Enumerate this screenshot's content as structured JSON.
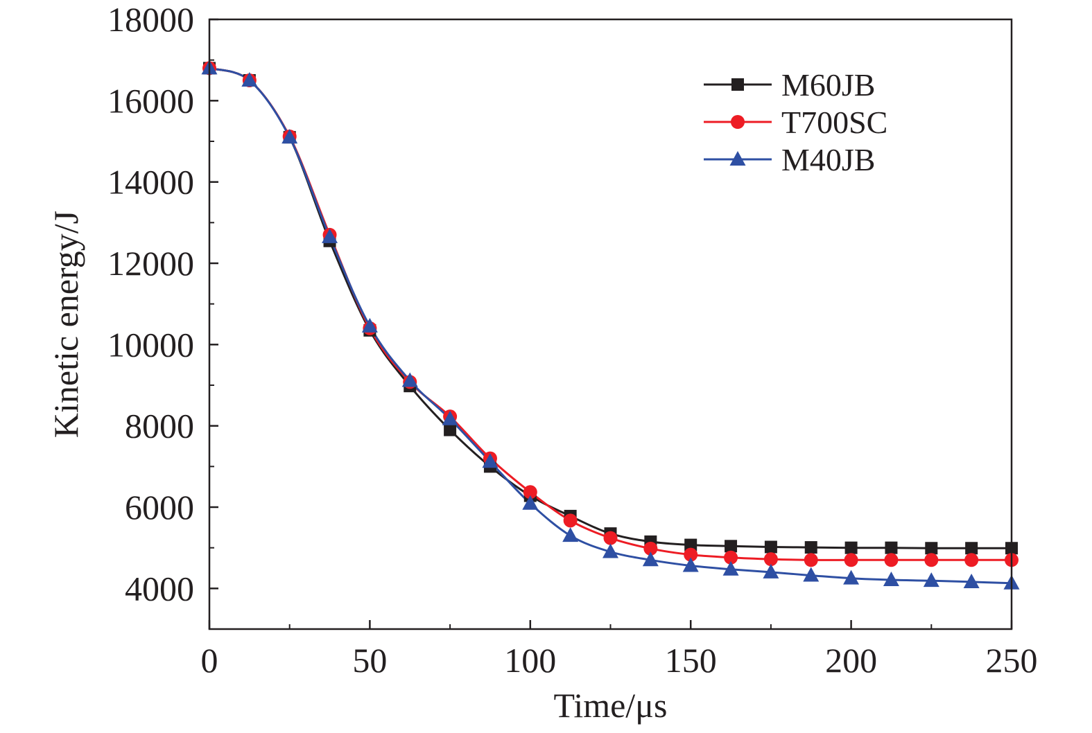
{
  "chart_data": {
    "type": "line",
    "title": "",
    "xlabel": "Time/μs",
    "ylabel": "Kinetic energy/J",
    "xlim": [
      0,
      250
    ],
    "ylim": [
      3000,
      18000
    ],
    "xticks": [
      0,
      50,
      100,
      150,
      200,
      250
    ],
    "yticks": [
      4000,
      6000,
      8000,
      10000,
      12000,
      14000,
      16000,
      18000
    ],
    "xtick_labels": [
      "0",
      "50",
      "100",
      "150",
      "200",
      "250"
    ],
    "ytick_labels": [
      "4000",
      "6000",
      "8000",
      "10000",
      "12000",
      "14000",
      "16000",
      "18000"
    ],
    "grid": false,
    "legend_position": "top-right",
    "x": [
      0,
      12.5,
      25,
      37.5,
      50,
      62.5,
      75,
      87.5,
      100,
      112.5,
      125,
      137.5,
      150,
      162.5,
      175,
      187.5,
      200,
      212.5,
      225,
      237.5,
      250
    ],
    "series": [
      {
        "name": "M60JB",
        "color": "#231f20",
        "marker": "square",
        "values": [
          16800,
          16500,
          15100,
          12550,
          10350,
          8980,
          7900,
          7000,
          6280,
          5780,
          5350,
          5150,
          5070,
          5040,
          5020,
          5010,
          5000,
          5000,
          4990,
          4990,
          4990
        ]
      },
      {
        "name": "T700SC",
        "color": "#ed1c24",
        "marker": "circle",
        "values": [
          16800,
          16500,
          15120,
          12700,
          10400,
          9080,
          8230,
          7200,
          6370,
          5670,
          5240,
          4980,
          4830,
          4760,
          4720,
          4700,
          4700,
          4700,
          4700,
          4700,
          4700
        ]
      },
      {
        "name": "M40JB",
        "color": "#2e4fa3",
        "marker": "triangle",
        "values": [
          16800,
          16500,
          15100,
          12650,
          10450,
          9110,
          8170,
          7120,
          6090,
          5300,
          4900,
          4700,
          4560,
          4470,
          4400,
          4320,
          4250,
          4210,
          4190,
          4160,
          4130
        ]
      }
    ]
  }
}
